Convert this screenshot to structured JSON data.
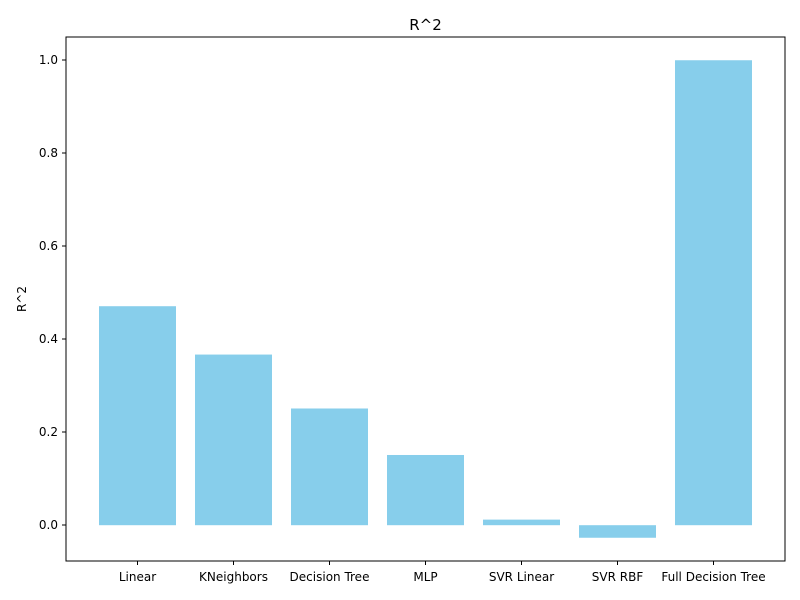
{
  "chart_data": {
    "type": "bar",
    "title": "R^2",
    "xlabel": "",
    "ylabel": "R^2",
    "categories": [
      "Linear",
      "KNeighbors",
      "Decision Tree",
      "MLP",
      "SVR Linear",
      "SVR RBF",
      "Full Decision Tree"
    ],
    "values": [
      0.471,
      0.367,
      0.251,
      0.151,
      0.012,
      -0.027,
      1.0
    ],
    "ylim": [
      -0.077,
      1.05
    ],
    "yticks": [
      0.0,
      0.2,
      0.4,
      0.6,
      0.8,
      1.0
    ],
    "ytick_labels": [
      "0.0",
      "0.2",
      "0.4",
      "0.6",
      "0.8",
      "1.0"
    ],
    "grid": false,
    "legend": "none",
    "bar_color": "#87CEEB"
  }
}
